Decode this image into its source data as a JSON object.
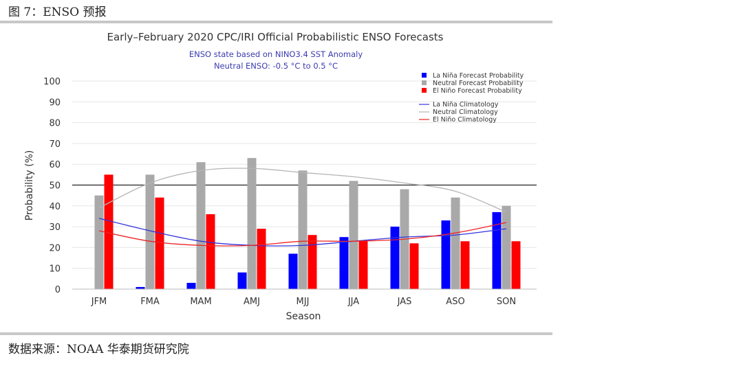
{
  "figure": {
    "caption": "图 7：ENSO 预报",
    "source": "数据来源：NOAA 华泰期货研究院"
  },
  "chart_data": {
    "type": "bar",
    "title": "Early–February 2020 CPC/IRI Official Probabilistic ENSO Forecasts",
    "subtitle_lines": [
      "ENSO state based on NINO3.4 SST Anomaly",
      "Neutral ENSO: -0.5 °C to 0.5 °C"
    ],
    "xlabel": "Season",
    "ylabel": "Probability (%)",
    "ylim": [
      0,
      100
    ],
    "yticks": [
      0,
      10,
      20,
      30,
      40,
      50,
      60,
      70,
      80,
      90,
      100
    ],
    "reference_line": 50,
    "grid": true,
    "legend_position": "top-right",
    "categories": [
      "JFM",
      "FMA",
      "MAM",
      "AMJ",
      "MJJ",
      "JJA",
      "JAS",
      "ASO",
      "SON"
    ],
    "series": [
      {
        "name": "La Niña Forecast Probability",
        "color": "#0000ff",
        "values": [
          0,
          1,
          3,
          8,
          17,
          25,
          30,
          33,
          37
        ]
      },
      {
        "name": "Neutral Forecast Probability",
        "color": "#a9a9a9",
        "values": [
          45,
          55,
          61,
          63,
          57,
          52,
          48,
          44,
          40
        ]
      },
      {
        "name": "El Niño Forecast Probability",
        "color": "#ff0000",
        "values": [
          55,
          44,
          36,
          29,
          26,
          23,
          22,
          23,
          23
        ]
      }
    ],
    "lines": [
      {
        "name": "La Niña Climatology",
        "color": "#3333dd",
        "values": [
          34,
          28,
          23,
          21,
          21,
          23,
          25,
          26,
          29
        ]
      },
      {
        "name": "Neutral Climatology",
        "color": "#b5b5b5",
        "values": [
          39,
          51,
          57,
          58,
          56,
          54,
          51,
          47,
          37
        ]
      },
      {
        "name": "El Niño Climatology",
        "color": "#ee2222",
        "values": [
          28,
          23,
          21,
          21,
          23,
          23,
          24,
          27,
          32
        ]
      }
    ]
  }
}
